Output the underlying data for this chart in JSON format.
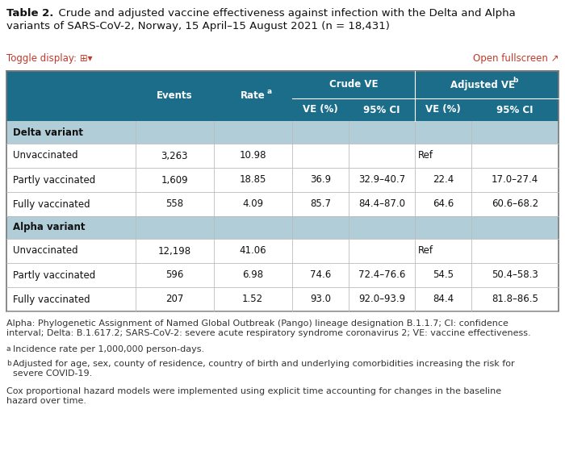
{
  "title_bold": "Table 2.",
  "title_rest": "  Crude and adjusted vaccine effectiveness against infection with the Delta and Alpha\nvariants of SARS-CoV-2, Norway, 15 April–15 August 2021 (n = 18,431)",
  "toggle_text": "Toggle display: ⊞▾",
  "open_fullscreen": "Open fullscreen ↗",
  "header_bg": "#1b6d8a",
  "section_bg": "#b0cdd8",
  "row_bg": "#ffffff",
  "border_outer": "#888888",
  "border_inner": "#bbbbbb",
  "text_white": "#ffffff",
  "text_dark": "#222222",
  "text_red": "#c0392b",
  "rows": [
    {
      "type": "section",
      "label": "Delta variant",
      "cells": []
    },
    {
      "type": "data",
      "cells": [
        "Unvaccinated",
        "3,263",
        "10.98",
        "Ref",
        "",
        "",
        ""
      ]
    },
    {
      "type": "data",
      "cells": [
        "Partly vaccinated",
        "1,609",
        "18.85",
        "36.9",
        "32.9–40.7",
        "22.4",
        "17.0–27.4"
      ]
    },
    {
      "type": "data",
      "cells": [
        "Fully vaccinated",
        "558",
        "4.09",
        "85.7",
        "84.4–87.0",
        "64.6",
        "60.6–68.2"
      ]
    },
    {
      "type": "section",
      "label": "Alpha variant",
      "cells": []
    },
    {
      "type": "data",
      "cells": [
        "Unvaccinated",
        "12,198",
        "41.06",
        "Ref",
        "",
        "",
        ""
      ]
    },
    {
      "type": "data",
      "cells": [
        "Partly vaccinated",
        "596",
        "6.98",
        "74.6",
        "72.4–76.6",
        "54.5",
        "50.4–58.3"
      ]
    },
    {
      "type": "data",
      "cells": [
        "Fully vaccinated",
        "207",
        "1.52",
        "93.0",
        "92.0–93.9",
        "84.4",
        "81.8–86.5"
      ]
    }
  ],
  "footnote1": "Alpha: Phylogenetic Assignment of Named Global Outbreak (Pango) lineage designation B.1.1.7; CI: confidence\ninterval; Delta: B.1.617.2; SARS-CoV-2: severe acute respiratory syndrome coronavirus 2; VE: vaccine effectiveness.",
  "footnote_a": "Incidence rate per 1,000,000 person-days.",
  "footnote_b": "Adjusted for age, sex, county of residence, country of birth and underlying comorbidities increasing the risk for\nsevere COVID-19.",
  "footnote_last": "Cox proportional hazard models were implemented using explicit time accounting for changes in the baseline\nhazard over time.",
  "fig_width": 7.0,
  "fig_height": 5.59,
  "dpi": 100
}
